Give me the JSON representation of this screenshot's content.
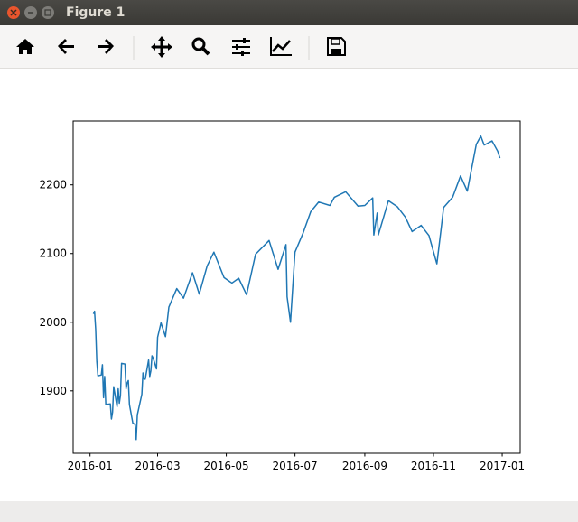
{
  "window": {
    "title": "Figure 1"
  },
  "chart_data": {
    "type": "line",
    "x": [
      "2016-01-04",
      "2016-01-05",
      "2016-01-06",
      "2016-01-07",
      "2016-01-08",
      "2016-01-11",
      "2016-01-12",
      "2016-01-13",
      "2016-01-14",
      "2016-01-15",
      "2016-01-19",
      "2016-01-20",
      "2016-01-21",
      "2016-01-22",
      "2016-01-25",
      "2016-01-26",
      "2016-01-27",
      "2016-01-28",
      "2016-01-29",
      "2016-02-01",
      "2016-02-02",
      "2016-02-03",
      "2016-02-04",
      "2016-02-05",
      "2016-02-08",
      "2016-02-09",
      "2016-02-10",
      "2016-02-11",
      "2016-02-12",
      "2016-02-16",
      "2016-02-17",
      "2016-02-18",
      "2016-02-19",
      "2016-02-22",
      "2016-02-23",
      "2016-02-24",
      "2016-02-25",
      "2016-02-26",
      "2016-02-29",
      "2016-03-01",
      "2016-03-04",
      "2016-03-08",
      "2016-03-11",
      "2016-03-18",
      "2016-03-24",
      "2016-04-01",
      "2016-04-07",
      "2016-04-14",
      "2016-04-20",
      "2016-04-29",
      "2016-05-06",
      "2016-05-12",
      "2016-05-19",
      "2016-05-27",
      "2016-06-08",
      "2016-06-16",
      "2016-06-23",
      "2016-06-24",
      "2016-06-27",
      "2016-07-01",
      "2016-07-08",
      "2016-07-15",
      "2016-07-22",
      "2016-08-01",
      "2016-08-05",
      "2016-08-15",
      "2016-08-26",
      "2016-09-01",
      "2016-09-08",
      "2016-09-09",
      "2016-09-12",
      "2016-09-13",
      "2016-09-22",
      "2016-09-30",
      "2016-10-07",
      "2016-10-13",
      "2016-10-21",
      "2016-10-28",
      "2016-11-04",
      "2016-11-08",
      "2016-11-10",
      "2016-11-18",
      "2016-11-25",
      "2016-12-01",
      "2016-12-09",
      "2016-12-13",
      "2016-12-16",
      "2016-12-23",
      "2016-12-28",
      "2016-12-30"
    ],
    "values": [
      2012,
      2016,
      1990,
      1943,
      1922,
      1923,
      1938,
      1890,
      1921,
      1880,
      1881,
      1859,
      1869,
      1906,
      1877,
      1903,
      1882,
      1893,
      1940,
      1939,
      1903,
      1912,
      1915,
      1880,
      1853,
      1852,
      1851,
      1829,
      1865,
      1895,
      1926,
      1917,
      1917,
      1945,
      1921,
      1929,
      1951,
      1948,
      1932,
      1978,
      1999,
      1979,
      2022,
      2049,
      2035,
      2072,
      2041,
      2082,
      2102,
      2065,
      2057,
      2064,
      2040,
      2099,
      2119,
      2077,
      2113,
      2037,
      2000,
      2102,
      2129,
      2161,
      2175,
      2170,
      2182,
      2190,
      2169,
      2170,
      2181,
      2127,
      2159,
      2127,
      2177,
      2168,
      2153,
      2132,
      2141,
      2126,
      2085,
      2139,
      2167,
      2182,
      2213,
      2191,
      2259,
      2271,
      2258,
      2264,
      2249,
      2239
    ],
    "color": "#1f77b4",
    "xlim": [
      "2015-12-17",
      "2017-01-17"
    ],
    "xticks": [
      {
        "value": "2016-01-01",
        "label": "2016-01"
      },
      {
        "value": "2016-03-01",
        "label": "2016-03"
      },
      {
        "value": "2016-05-01",
        "label": "2016-05"
      },
      {
        "value": "2016-07-01",
        "label": "2016-07"
      },
      {
        "value": "2016-09-01",
        "label": "2016-09"
      },
      {
        "value": "2016-11-01",
        "label": "2016-11"
      },
      {
        "value": "2017-01-01",
        "label": "2017-01"
      }
    ],
    "ylim": [
      1809,
      2293
    ],
    "yticks": [
      1900,
      2000,
      2100,
      2200
    ]
  }
}
